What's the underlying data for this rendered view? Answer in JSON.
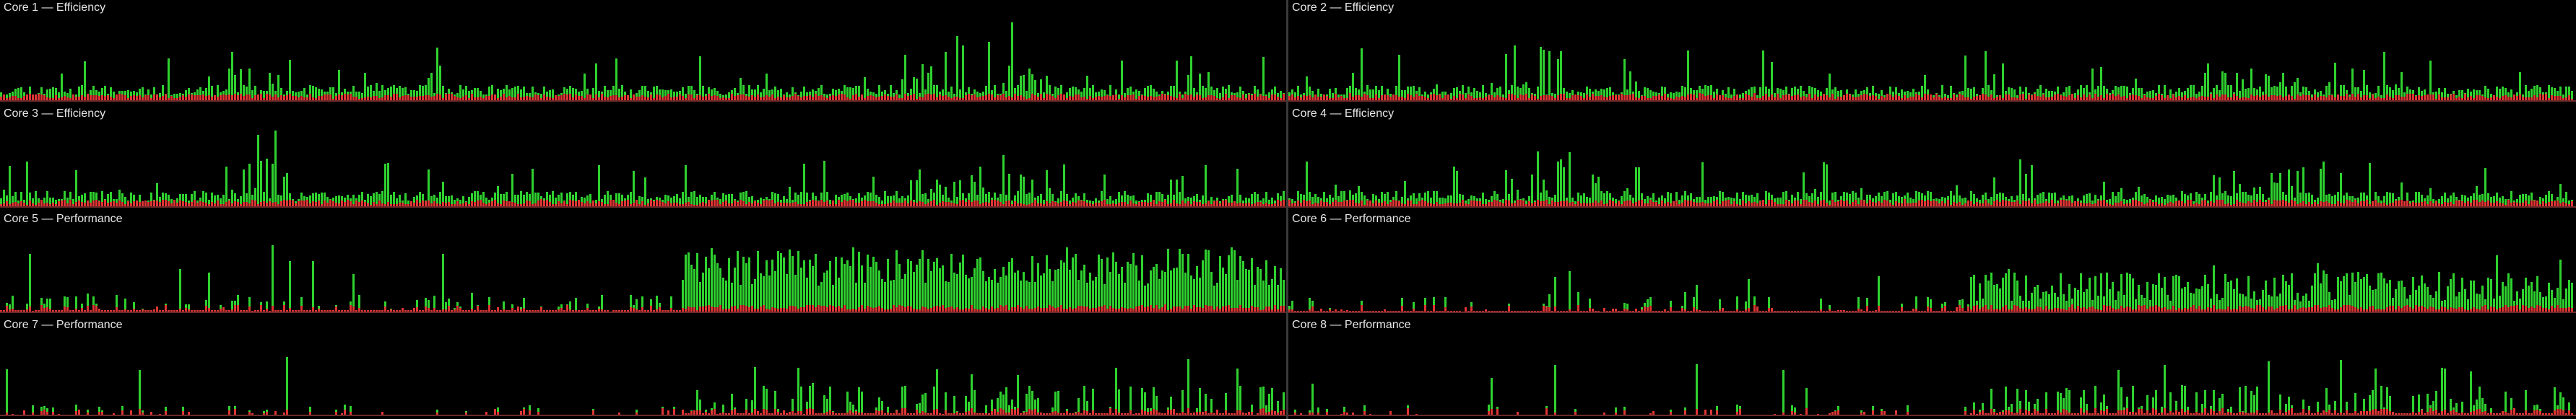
{
  "window": {
    "panels": [
      {
        "title": "Core 1 — Efficiency",
        "seed": 11,
        "profile": "efficiency"
      },
      {
        "title": "Core 2 — Efficiency",
        "seed": 23,
        "profile": "efficiency"
      },
      {
        "title": "Core 3 — Efficiency",
        "seed": 37,
        "profile": "efficiency"
      },
      {
        "title": "Core 4 — Efficiency",
        "seed": 41,
        "profile": "efficiency"
      },
      {
        "title": "Core 5 — Performance",
        "seed": 53,
        "profile": "performance-busy"
      },
      {
        "title": "Core 6 — Performance",
        "seed": 67,
        "profile": "performance-mid"
      },
      {
        "title": "Core 7 — Performance",
        "seed": 79,
        "profile": "performance-light"
      },
      {
        "title": "Core 8 — Performance",
        "seed": 97,
        "profile": "performance-light"
      }
    ],
    "colors": {
      "background": "#000000",
      "user_load": "#2fd12f",
      "system_load": "#e03535",
      "baseline": "#6b2a2a",
      "divider": "#3a3a3a",
      "title_text": "#e6e6e6"
    }
  }
}
